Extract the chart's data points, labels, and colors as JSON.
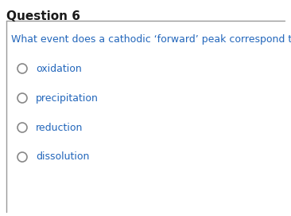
{
  "title": "Question 6",
  "title_color": "#1a1a1a",
  "title_fontsize": 11,
  "title_bold": true,
  "question_text": "What event does a cathodic ‘forward’ peak correspond to?",
  "question_color": "#2266bb",
  "question_fontsize": 9,
  "options": [
    "oxidation",
    "precipitation",
    "reduction",
    "dissolution"
  ],
  "option_color": "#2266bb",
  "option_fontsize": 9,
  "background_color": "#ffffff",
  "box_edge_color": "#999999",
  "radio_stroke_color": "#888888",
  "radio_fill_color": "#ffffff"
}
